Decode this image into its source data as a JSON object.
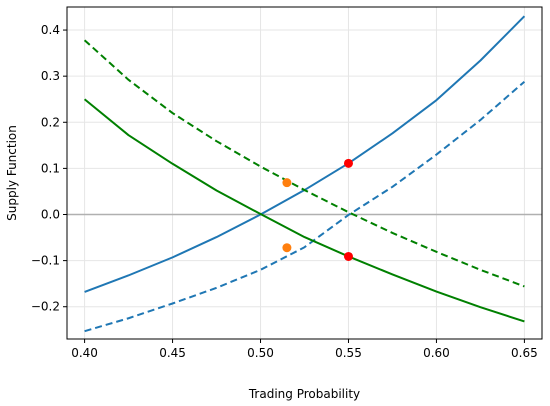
{
  "chart_data": {
    "type": "line",
    "title": "",
    "xlabel": "Trading Probability",
    "ylabel": "Supply Function",
    "xlim": [
      0.39,
      0.66
    ],
    "ylim": [
      -0.27,
      0.45
    ],
    "xticks": [
      0.4,
      0.45,
      0.5,
      0.55,
      0.6,
      0.65
    ],
    "xtick_labels": [
      "0.40",
      "0.45",
      "0.50",
      "0.55",
      "0.60",
      "0.65"
    ],
    "yticks": [
      -0.2,
      -0.1,
      0.0,
      0.1,
      0.2,
      0.3,
      0.4
    ],
    "ytick_labels": [
      "−0.2",
      "−0.1",
      "0.0",
      "0.1",
      "0.2",
      "0.3",
      "0.4"
    ],
    "grid": true,
    "reference_line": {
      "y": 0.0,
      "color": "#b0b0b0"
    },
    "series": [
      {
        "color": "#1f77b4",
        "style": "solid",
        "x": [
          0.4,
          0.425,
          0.45,
          0.475,
          0.5,
          0.525,
          0.55,
          0.575,
          0.6,
          0.625,
          0.65
        ],
        "y": [
          -0.168,
          -0.132,
          -0.093,
          -0.049,
          0.0,
          0.053,
          0.111,
          0.176,
          0.248,
          0.334,
          0.43
        ]
      },
      {
        "color": "#1f77b4",
        "style": "dashed",
        "x": [
          0.4,
          0.425,
          0.45,
          0.475,
          0.5,
          0.525,
          0.55,
          0.575,
          0.6,
          0.625,
          0.65
        ],
        "y": [
          -0.253,
          -0.225,
          -0.193,
          -0.159,
          -0.12,
          -0.071,
          -0.001,
          0.06,
          0.13,
          0.205,
          0.288
        ]
      },
      {
        "color": "#008000",
        "style": "solid",
        "x": [
          0.4,
          0.425,
          0.45,
          0.475,
          0.5,
          0.525,
          0.55,
          0.575,
          0.6,
          0.625,
          0.65
        ],
        "y": [
          0.25,
          0.172,
          0.11,
          0.052,
          0.001,
          -0.049,
          -0.091,
          -0.13,
          -0.167,
          -0.201,
          -0.232
        ]
      },
      {
        "color": "#008000",
        "style": "dashed",
        "x": [
          0.4,
          0.425,
          0.45,
          0.475,
          0.5,
          0.525,
          0.55,
          0.575,
          0.6,
          0.625,
          0.65
        ],
        "y": [
          0.378,
          0.292,
          0.22,
          0.159,
          0.104,
          0.053,
          0.005,
          -0.04,
          -0.081,
          -0.12,
          -0.156
        ]
      }
    ],
    "points": [
      {
        "x": 0.55,
        "y": 0.111,
        "color": "#ff0000"
      },
      {
        "x": 0.55,
        "y": -0.091,
        "color": "#ff0000"
      },
      {
        "x": 0.515,
        "y": 0.069,
        "color": "#ff7f0e"
      },
      {
        "x": 0.515,
        "y": -0.072,
        "color": "#ff7f0e"
      }
    ]
  }
}
